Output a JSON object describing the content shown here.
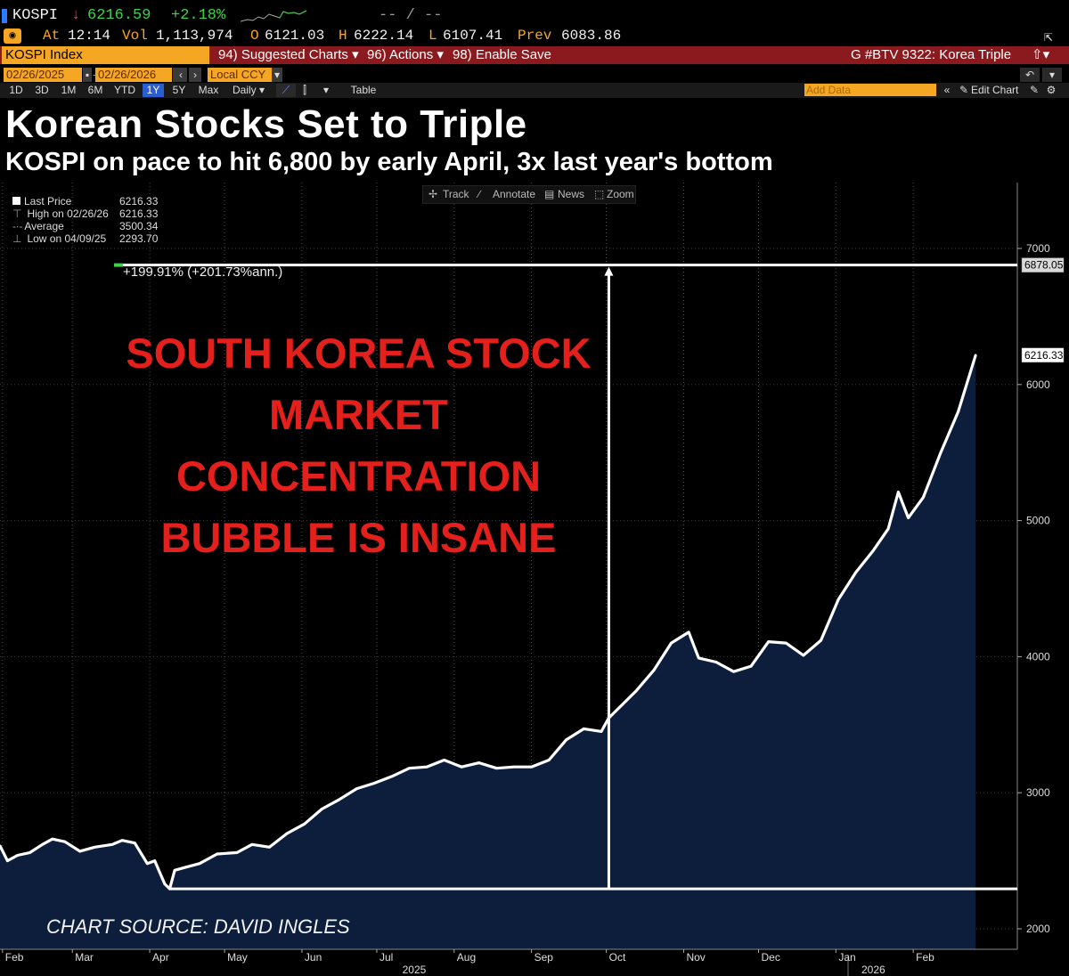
{
  "ticker": {
    "symbol": "KOSPI",
    "arrow": "↓",
    "last": "6216.59",
    "change": "+2.18%",
    "extra": "-- / --"
  },
  "stats": {
    "at_label": "At",
    "time": "12:14",
    "vol_label": "Vol",
    "vol": "1,113,974",
    "open_label": "O",
    "open": "6121.03",
    "high_label": "H",
    "high": "6222.14",
    "low_label": "L",
    "low": "6107.41",
    "prev_label": "Prev",
    "prev": "6083.86"
  },
  "command_bar": {
    "index": "KOSPI Index",
    "suggested": "94) Suggested Charts ▾",
    "actions": "96) Actions ▾",
    "enable_save": "98) Enable Save",
    "page": "G #BTV 9322: Korea Triple"
  },
  "date_bar": {
    "start": "02/26/2025",
    "end": "02/26/2026",
    "currency": "Local CCY"
  },
  "range_bar": {
    "ranges": [
      "1D",
      "3D",
      "1M",
      "6M",
      "YTD",
      "1Y",
      "5Y",
      "Max"
    ],
    "selected": "1Y",
    "frequency": "Daily ▾",
    "table": "Table",
    "add_data": "Add Data",
    "edit_chart": "Edit Chart"
  },
  "toolbar": {
    "track": "Track",
    "annotate": "Annotate",
    "news": "News",
    "zoom": "Zoom"
  },
  "legend": {
    "last_price_label": "Last Price",
    "last_price": "6216.33",
    "high_label": "High on 02/26/26",
    "high": "6216.33",
    "average_label": "Average",
    "average": "3500.34",
    "low_label": "Low on 04/09/25",
    "low": "2293.70"
  },
  "colors": {
    "line": "#ffffff",
    "fill": "#0c1e3c",
    "annotation": "#e3201b",
    "accent": "#f5a623"
  },
  "chart_data": {
    "type": "area",
    "title": "Korean Stocks Set to Triple",
    "subtitle": "KOSPI on pace to hit 6,800 by early April, 3x last year's bottom",
    "ylim": [
      1950,
      7300
    ],
    "yticks": [
      "7000",
      "6000",
      "5000",
      "4000",
      "3000",
      "2000"
    ],
    "ytick_values": [
      7000,
      6000,
      5000,
      4000,
      3000,
      2000
    ],
    "xticks": [
      "Feb",
      "Mar",
      "Apr",
      "May",
      "Jun",
      "Jul",
      "Aug",
      "Sep",
      "Oct",
      "Nov",
      "Dec",
      "Jan",
      "Feb"
    ],
    "xtick_dates": [
      "2025-02-01",
      "2025-03-01",
      "2025-04-01",
      "2025-05-01",
      "2025-06-01",
      "2025-07-01",
      "2025-08-01",
      "2025-09-01",
      "2025-10-01",
      "2025-11-01",
      "2025-12-01",
      "2026-01-01",
      "2026-02-01"
    ],
    "year_labels": [
      "2025",
      "2026"
    ],
    "year_label_dates": [
      "2025-07-16",
      "2026-01-16"
    ],
    "series": [
      {
        "dates": [
          "2025-01-31",
          "2025-02-03",
          "2025-02-07",
          "2025-02-12",
          "2025-02-17",
          "2025-02-21",
          "2025-02-26",
          "2025-03-04",
          "2025-03-10",
          "2025-03-17",
          "2025-03-21",
          "2025-03-26",
          "2025-03-31",
          "2025-04-03",
          "2025-04-07",
          "2025-04-09",
          "2025-04-11",
          "2025-04-15",
          "2025-04-21",
          "2025-04-28",
          "2025-05-06",
          "2025-05-12",
          "2025-05-19",
          "2025-05-26",
          "2025-06-02",
          "2025-06-09",
          "2025-06-16",
          "2025-06-23",
          "2025-06-30",
          "2025-07-07",
          "2025-07-14",
          "2025-07-21",
          "2025-07-28",
          "2025-08-04",
          "2025-08-11",
          "2025-08-18",
          "2025-08-25",
          "2025-09-01",
          "2025-09-08",
          "2025-09-15",
          "2025-09-22",
          "2025-09-29",
          "2025-10-02",
          "2025-10-13",
          "2025-10-20",
          "2025-10-27",
          "2025-11-03",
          "2025-11-07",
          "2025-11-14",
          "2025-11-21",
          "2025-11-28",
          "2025-12-05",
          "2025-12-12",
          "2025-12-19",
          "2025-12-26",
          "2026-01-02",
          "2026-01-09",
          "2026-01-16",
          "2026-01-22",
          "2026-01-26",
          "2026-01-30",
          "2026-02-05",
          "2026-02-12",
          "2026-02-19",
          "2026-02-26"
        ],
        "values": [
          2610,
          2500,
          2540,
          2560,
          2620,
          2660,
          2640,
          2570,
          2600,
          2620,
          2650,
          2630,
          2480,
          2500,
          2330,
          2294,
          2430,
          2450,
          2480,
          2550,
          2560,
          2620,
          2600,
          2700,
          2770,
          2880,
          2950,
          3030,
          3070,
          3120,
          3180,
          3190,
          3240,
          3190,
          3220,
          3180,
          3190,
          3190,
          3240,
          3390,
          3470,
          3450,
          3550,
          3750,
          3900,
          4100,
          4180,
          3990,
          3960,
          3890,
          3930,
          4110,
          4100,
          4010,
          4120,
          4420,
          4620,
          4780,
          4940,
          5210,
          5020,
          5170,
          5500,
          5800,
          6216
        ]
      }
    ],
    "support_level": 2294,
    "target_level": 6878,
    "target_label": "6878.05",
    "last_label": "6216.33",
    "move_date": "2025-10-02",
    "move_label": "+199.91% (+201.73%ann.)",
    "annotation": [
      "SOUTH KOREA STOCK",
      "MARKET",
      "CONCENTRATION",
      "BUBBLE IS INSANE"
    ],
    "source": "CHART SOURCE: DAVID INGLES"
  }
}
